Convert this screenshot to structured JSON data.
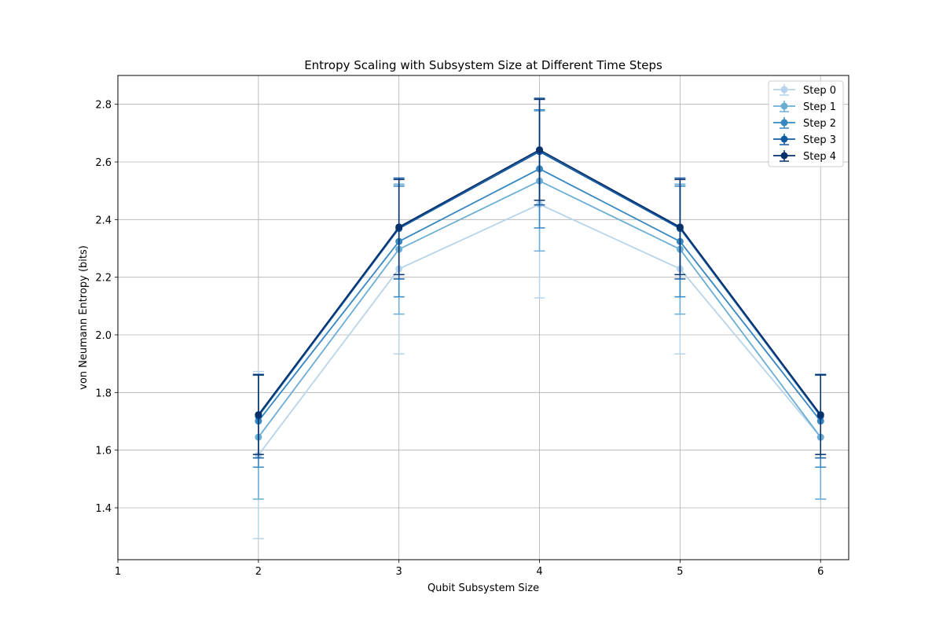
{
  "chart_data": {
    "type": "line",
    "title": "Entropy Scaling with Subsystem Size at Different Time Steps",
    "xlabel": "Qubit Subsystem Size",
    "ylabel": "von Neumann Entropy (bits)",
    "xlim": [
      1,
      6.2
    ],
    "ylim": [
      1.22,
      2.9
    ],
    "xticks": [
      1,
      2,
      3,
      4,
      5,
      6
    ],
    "yticks": [
      "1.4",
      "1.6",
      "1.8",
      "2.0",
      "2.2",
      "2.4",
      "2.6",
      "2.8"
    ],
    "grid": true,
    "legend_position": "top-right",
    "x": [
      2,
      3,
      4,
      5,
      6
    ],
    "series": [
      {
        "name": "Step 0",
        "color": "#b7d4ea",
        "values": [
          1.583,
          2.229,
          2.453,
          2.229,
          1.645
        ],
        "err": [
          0.29,
          0.295,
          0.325,
          0.295,
          0.215
        ]
      },
      {
        "name": "Step 1",
        "color": "#6aaed6",
        "values": [
          1.645,
          2.297,
          2.534,
          2.297,
          1.645
        ],
        "err": [
          0.215,
          0.225,
          0.243,
          0.225,
          0.215
        ]
      },
      {
        "name": "Step 2",
        "color": "#3787c0",
        "values": [
          1.701,
          2.324,
          2.576,
          2.324,
          1.701
        ],
        "err": [
          0.16,
          0.192,
          0.205,
          0.192,
          0.16
        ]
      },
      {
        "name": "Step 3",
        "color": "#105ba4",
        "values": [
          1.718,
          2.369,
          2.636,
          2.369,
          1.718
        ],
        "err": [
          0.145,
          0.175,
          0.185,
          0.175,
          0.145
        ]
      },
      {
        "name": "Step 4",
        "color": "#08306b",
        "values": [
          1.723,
          2.374,
          2.642,
          2.374,
          1.723
        ],
        "err": [
          0.138,
          0.165,
          0.175,
          0.165,
          0.138
        ]
      }
    ]
  }
}
